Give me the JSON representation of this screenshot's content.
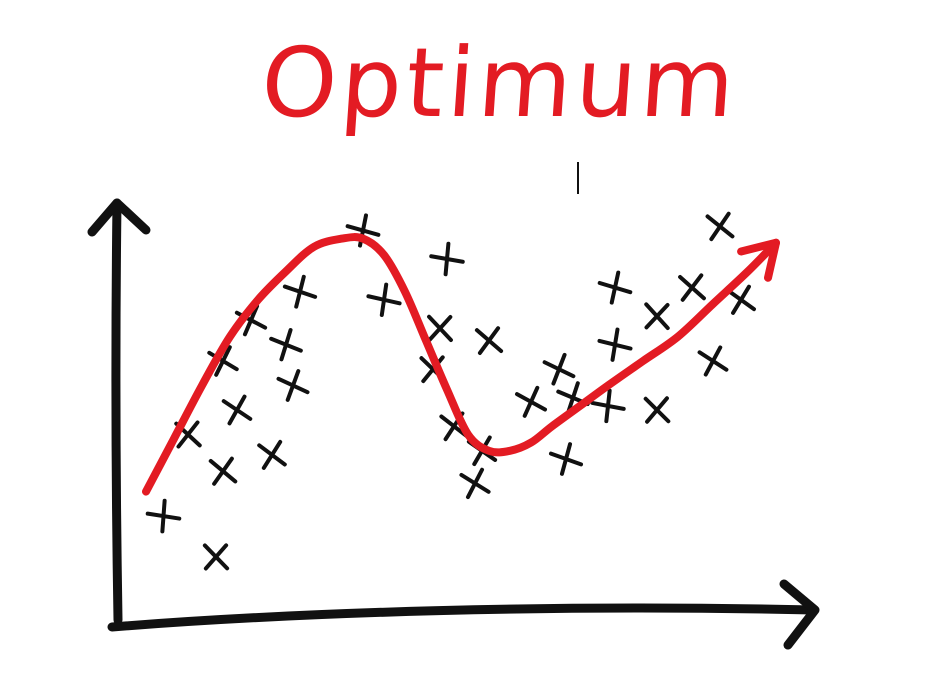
{
  "colors": {
    "accent": "#e31b23",
    "ink": "#111111",
    "background": "#ffffff"
  },
  "chart_data": {
    "type": "scatter",
    "title": "Optimum",
    "xlabel": "",
    "ylabel": "",
    "grid": false,
    "legend": "none",
    "xlim": [
      0,
      100
    ],
    "ylim": [
      0,
      100
    ],
    "points": [
      {
        "x": 6.5,
        "y": 24
      },
      {
        "x": 14,
        "y": 14
      },
      {
        "x": 10,
        "y": 44
      },
      {
        "x": 15,
        "y": 35
      },
      {
        "x": 22,
        "y": 39
      },
      {
        "x": 17,
        "y": 50
      },
      {
        "x": 15,
        "y": 62
      },
      {
        "x": 19,
        "y": 72
      },
      {
        "x": 25,
        "y": 56
      },
      {
        "x": 24,
        "y": 66
      },
      {
        "x": 26,
        "y": 79
      },
      {
        "x": 35,
        "y": 94
      },
      {
        "x": 38,
        "y": 77
      },
      {
        "x": 47,
        "y": 87
      },
      {
        "x": 46,
        "y": 70
      },
      {
        "x": 45,
        "y": 60
      },
      {
        "x": 53,
        "y": 67
      },
      {
        "x": 48,
        "y": 46
      },
      {
        "x": 52,
        "y": 40
      },
      {
        "x": 51,
        "y": 32
      },
      {
        "x": 59,
        "y": 52
      },
      {
        "x": 63,
        "y": 60
      },
      {
        "x": 65,
        "y": 53
      },
      {
        "x": 64,
        "y": 38
      },
      {
        "x": 71,
        "y": 80
      },
      {
        "x": 71,
        "y": 66
      },
      {
        "x": 70,
        "y": 51
      },
      {
        "x": 77,
        "y": 73
      },
      {
        "x": 77,
        "y": 50
      },
      {
        "x": 82,
        "y": 80
      },
      {
        "x": 86,
        "y": 95
      },
      {
        "x": 89,
        "y": 77
      },
      {
        "x": 85,
        "y": 62
      }
    ],
    "series": [
      {
        "type": "line",
        "arrow": true,
        "x": [
          4,
          8,
          12,
          16,
          20,
          24,
          28,
          32,
          35,
          38,
          41,
          44,
          47,
          50,
          53,
          56,
          59,
          62,
          66,
          70,
          75,
          80,
          85,
          90,
          94
        ],
        "y": [
          30,
          43,
          56,
          68,
          77,
          84,
          90,
          92,
          92,
          88,
          79,
          67,
          55,
          44,
          40,
          40,
          42,
          46,
          51,
          56,
          62,
          68,
          76,
          84,
          91
        ]
      }
    ]
  }
}
